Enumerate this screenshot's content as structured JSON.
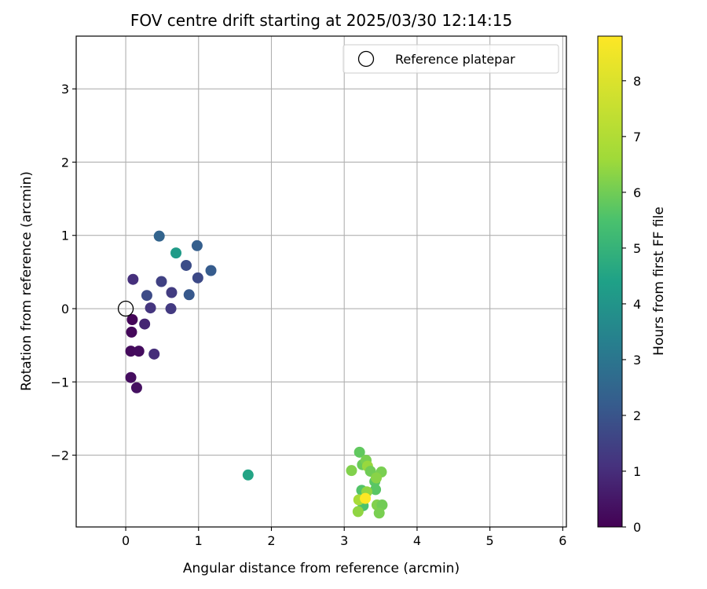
{
  "chart_data": {
    "type": "scatter",
    "title": "FOV centre drift starting at 2025/03/30 12:14:15",
    "xlabel": "Angular distance from reference (arcmin)",
    "ylabel": "Rotation from reference (arcmin)",
    "xlim": [
      -0.68,
      6.05
    ],
    "ylim": [
      -2.98,
      3.72
    ],
    "x_ticks": [
      0,
      1,
      2,
      3,
      4,
      5,
      6
    ],
    "y_ticks": [
      -2,
      -1,
      0,
      1,
      2,
      3
    ],
    "grid": true,
    "legend": {
      "placement": "top-right",
      "entries": [
        {
          "label": "Reference platepar",
          "marker": "open-circle",
          "x": 0,
          "y": 0
        }
      ]
    },
    "colorbar": {
      "label": "Hours from first FF file",
      "range": [
        0,
        8.8
      ],
      "ticks": [
        0,
        1,
        2,
        3,
        4,
        5,
        6,
        7,
        8
      ],
      "colormap": "viridis"
    },
    "points": [
      {
        "x": 0.09,
        "y": -0.15,
        "h": 0.1
      },
      {
        "x": 0.08,
        "y": -0.32,
        "h": 0.15
      },
      {
        "x": 0.07,
        "y": -0.58,
        "h": 0.2
      },
      {
        "x": 0.18,
        "y": -0.58,
        "h": 0.25
      },
      {
        "x": 0.07,
        "y": -0.94,
        "h": 0.3
      },
      {
        "x": 0.15,
        "y": -1.08,
        "h": 0.35
      },
      {
        "x": 0.26,
        "y": -0.21,
        "h": 0.8
      },
      {
        "x": 0.39,
        "y": -0.62,
        "h": 1.0
      },
      {
        "x": 0.1,
        "y": 0.4,
        "h": 1.05
      },
      {
        "x": 0.34,
        "y": 0.01,
        "h": 1.2
      },
      {
        "x": 0.62,
        "y": 0.0,
        "h": 1.3
      },
      {
        "x": 0.63,
        "y": 0.22,
        "h": 1.35
      },
      {
        "x": 0.49,
        "y": 0.37,
        "h": 1.5
      },
      {
        "x": 0.29,
        "y": 0.18,
        "h": 1.75
      },
      {
        "x": 0.99,
        "y": 0.42,
        "h": 1.7
      },
      {
        "x": 0.83,
        "y": 0.59,
        "h": 1.8
      },
      {
        "x": 0.87,
        "y": 0.19,
        "h": 2.1
      },
      {
        "x": 1.17,
        "y": 0.52,
        "h": 2.2
      },
      {
        "x": 0.98,
        "y": 0.86,
        "h": 2.3
      },
      {
        "x": 0.46,
        "y": 0.99,
        "h": 2.45
      },
      {
        "x": 0.69,
        "y": 0.76,
        "h": 4.2
      },
      {
        "x": 1.68,
        "y": -2.27,
        "h": 4.5
      },
      {
        "x": 3.21,
        "y": -1.96,
        "h": 5.8
      },
      {
        "x": 3.25,
        "y": -2.13,
        "h": 5.9
      },
      {
        "x": 3.24,
        "y": -2.48,
        "h": 5.6
      },
      {
        "x": 3.26,
        "y": -2.69,
        "h": 5.5
      },
      {
        "x": 3.42,
        "y": -2.36,
        "h": 5.7
      },
      {
        "x": 3.43,
        "y": -2.47,
        "h": 5.7
      },
      {
        "x": 3.3,
        "y": -2.07,
        "h": 6.1
      },
      {
        "x": 3.1,
        "y": -2.21,
        "h": 6.2
      },
      {
        "x": 3.32,
        "y": -2.15,
        "h": 6.5
      },
      {
        "x": 3.36,
        "y": -2.22,
        "h": 6.0
      },
      {
        "x": 3.51,
        "y": -2.23,
        "h": 6.1
      },
      {
        "x": 3.44,
        "y": -2.31,
        "h": 6.3
      },
      {
        "x": 3.31,
        "y": -2.5,
        "h": 6.4
      },
      {
        "x": 3.2,
        "y": -2.61,
        "h": 6.8
      },
      {
        "x": 3.45,
        "y": -2.68,
        "h": 6.2
      },
      {
        "x": 3.52,
        "y": -2.68,
        "h": 6.0
      },
      {
        "x": 3.19,
        "y": -2.77,
        "h": 6.4
      },
      {
        "x": 3.48,
        "y": -2.79,
        "h": 6.1
      },
      {
        "x": 3.29,
        "y": -2.59,
        "h": 8.8
      }
    ]
  }
}
